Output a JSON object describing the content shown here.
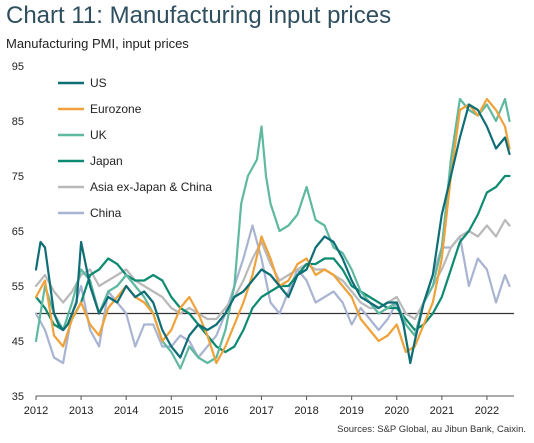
{
  "header": {
    "title": "Chart 11: Manufacturing input prices",
    "subtitle": "Manufacturing PMI, input prices"
  },
  "source": "Sources: S&P Global, au Jibun Bank, Caixin.",
  "chart_data": {
    "type": "line",
    "title": "Chart 11: Manufacturing input prices",
    "ylabel": "Manufacturing PMI, input prices",
    "xlim": [
      2012,
      2022.6
    ],
    "ylim": [
      35,
      95
    ],
    "yticks": [
      35,
      45,
      55,
      65,
      75,
      85,
      95
    ],
    "xticks": [
      2012,
      2013,
      2014,
      2015,
      2016,
      2017,
      2018,
      2019,
      2020,
      2021,
      2022
    ],
    "reference_line": 50,
    "grid": false,
    "legend_position": "top-left",
    "series": [
      {
        "name": "US",
        "color": "#0e6d75",
        "x": [
          2012.0,
          2012.1,
          2012.2,
          2012.3,
          2012.4,
          2012.5,
          2012.6,
          2012.7,
          2012.8,
          2012.9,
          2013.0,
          2013.2,
          2013.4,
          2013.6,
          2013.8,
          2014.0,
          2014.2,
          2014.4,
          2014.6,
          2014.8,
          2015.0,
          2015.2,
          2015.4,
          2015.6,
          2015.8,
          2016.0,
          2016.2,
          2016.4,
          2016.6,
          2016.8,
          2017.0,
          2017.2,
          2017.4,
          2017.6,
          2017.8,
          2018.0,
          2018.2,
          2018.4,
          2018.6,
          2018.8,
          2019.0,
          2019.2,
          2019.4,
          2019.6,
          2019.8,
          2020.0,
          2020.15,
          2020.3,
          2020.4,
          2020.6,
          2020.8,
          2021.0,
          2021.2,
          2021.4,
          2021.6,
          2021.8,
          2022.0,
          2022.2,
          2022.4,
          2022.5
        ],
        "y": [
          58,
          63,
          62,
          56,
          50,
          48,
          47,
          48,
          50,
          52,
          63,
          55,
          50,
          53,
          52,
          55,
          53,
          54,
          52,
          47,
          44,
          42,
          46,
          48,
          47,
          48,
          50,
          53,
          54,
          56,
          58,
          57,
          55,
          53,
          57,
          58,
          62,
          64,
          63,
          60,
          56,
          53,
          52,
          51,
          52,
          52,
          48,
          41,
          45,
          52,
          57,
          68,
          75,
          82,
          88,
          87,
          84,
          80,
          82,
          79
        ]
      },
      {
        "name": "Eurozone",
        "color": "#f0a23a",
        "x": [
          2012.0,
          2012.2,
          2012.4,
          2012.6,
          2012.8,
          2013.0,
          2013.2,
          2013.4,
          2013.6,
          2013.8,
          2014.0,
          2014.2,
          2014.4,
          2014.6,
          2014.8,
          2015.0,
          2015.2,
          2015.4,
          2015.6,
          2015.8,
          2016.0,
          2016.2,
          2016.4,
          2016.6,
          2016.8,
          2017.0,
          2017.2,
          2017.4,
          2017.6,
          2017.8,
          2018.0,
          2018.2,
          2018.4,
          2018.6,
          2018.8,
          2019.0,
          2019.2,
          2019.4,
          2019.6,
          2019.8,
          2020.0,
          2020.2,
          2020.4,
          2020.6,
          2020.8,
          2021.0,
          2021.2,
          2021.4,
          2021.6,
          2021.8,
          2022.0,
          2022.2,
          2022.4,
          2022.5
        ],
        "y": [
          53,
          56,
          46,
          44,
          49,
          52,
          48,
          46,
          51,
          53,
          55,
          53,
          52,
          50,
          45,
          47,
          51,
          53,
          50,
          46,
          41,
          44,
          48,
          52,
          57,
          64,
          60,
          55,
          56,
          59,
          60,
          57,
          58,
          57,
          55,
          53,
          49,
          47,
          45,
          46,
          48,
          43,
          44,
          48,
          52,
          60,
          75,
          87,
          88,
          86,
          89,
          87,
          84,
          80
        ]
      },
      {
        "name": "UK",
        "color": "#5fb8a0",
        "x": [
          2012.0,
          2012.2,
          2012.4,
          2012.6,
          2012.8,
          2013.0,
          2013.2,
          2013.4,
          2013.6,
          2013.8,
          2014.0,
          2014.2,
          2014.4,
          2014.6,
          2014.8,
          2015.0,
          2015.2,
          2015.4,
          2015.6,
          2015.8,
          2016.0,
          2016.2,
          2016.4,
          2016.55,
          2016.7,
          2016.9,
          2017.0,
          2017.1,
          2017.2,
          2017.4,
          2017.6,
          2017.8,
          2018.0,
          2018.2,
          2018.4,
          2018.6,
          2018.8,
          2019.0,
          2019.2,
          2019.4,
          2019.6,
          2019.8,
          2020.0,
          2020.2,
          2020.4,
          2020.6,
          2020.8,
          2021.0,
          2021.2,
          2021.4,
          2021.6,
          2021.8,
          2022.0,
          2022.2,
          2022.4,
          2022.5
        ],
        "y": [
          45,
          55,
          50,
          47,
          52,
          58,
          56,
          50,
          54,
          55,
          57,
          55,
          53,
          50,
          45,
          43,
          40,
          44,
          42,
          41,
          42,
          47,
          55,
          70,
          75,
          78,
          84,
          75,
          70,
          65,
          66,
          68,
          73,
          67,
          66,
          62,
          61,
          58,
          54,
          52,
          50,
          51,
          52,
          48,
          46,
          52,
          55,
          62,
          78,
          89,
          87,
          86,
          88,
          85,
          89,
          85
        ]
      },
      {
        "name": "Japan",
        "color": "#0f8a72",
        "x": [
          2012.0,
          2012.2,
          2012.4,
          2012.6,
          2012.8,
          2013.0,
          2013.2,
          2013.4,
          2013.6,
          2013.8,
          2014.0,
          2014.2,
          2014.4,
          2014.6,
          2014.8,
          2015.0,
          2015.2,
          2015.4,
          2015.6,
          2015.8,
          2016.0,
          2016.2,
          2016.4,
          2016.6,
          2016.8,
          2017.0,
          2017.2,
          2017.4,
          2017.6,
          2017.8,
          2018.0,
          2018.2,
          2018.4,
          2018.6,
          2018.8,
          2019.0,
          2019.2,
          2019.4,
          2019.6,
          2019.8,
          2020.0,
          2020.2,
          2020.4,
          2020.6,
          2020.8,
          2021.0,
          2021.2,
          2021.4,
          2021.6,
          2021.8,
          2022.0,
          2022.2,
          2022.4,
          2022.5
        ],
        "y": [
          53,
          51,
          48,
          47,
          49,
          52,
          57,
          58,
          60,
          59,
          57,
          56,
          56,
          57,
          56,
          53,
          51,
          50,
          48,
          46,
          44,
          43,
          44,
          47,
          51,
          53,
          54,
          55,
          55,
          57,
          59,
          59,
          60,
          60,
          58,
          55,
          54,
          53,
          52,
          51,
          51,
          49,
          47,
          48,
          50,
          53,
          58,
          63,
          65,
          68,
          72,
          73,
          75,
          75
        ]
      },
      {
        "name": "Asia ex-Japan & China",
        "color": "#b9b9b9",
        "x": [
          2012.0,
          2012.2,
          2012.4,
          2012.6,
          2012.8,
          2013.0,
          2013.2,
          2013.4,
          2013.6,
          2013.8,
          2014.0,
          2014.2,
          2014.4,
          2014.6,
          2014.8,
          2015.0,
          2015.2,
          2015.4,
          2015.6,
          2015.8,
          2016.0,
          2016.2,
          2016.4,
          2016.6,
          2016.8,
          2017.0,
          2017.2,
          2017.4,
          2017.6,
          2017.8,
          2018.0,
          2018.2,
          2018.4,
          2018.6,
          2018.8,
          2019.0,
          2019.2,
          2019.4,
          2019.6,
          2019.8,
          2020.0,
          2020.2,
          2020.4,
          2020.6,
          2020.8,
          2021.0,
          2021.2,
          2021.4,
          2021.6,
          2021.8,
          2022.0,
          2022.2,
          2022.4,
          2022.5
        ],
        "y": [
          55,
          57,
          54,
          52,
          54,
          57,
          58,
          55,
          56,
          57,
          58,
          56,
          55,
          54,
          53,
          51,
          50,
          51,
          50,
          49,
          49,
          51,
          53,
          56,
          60,
          63,
          59,
          56,
          57,
          58,
          59,
          58,
          58,
          57,
          56,
          54,
          52,
          51,
          51,
          52,
          53,
          50,
          49,
          52,
          55,
          58,
          62,
          64,
          65,
          64,
          66,
          64,
          67,
          66
        ]
      },
      {
        "name": "China",
        "color": "#a9b4d2",
        "x": [
          2012.0,
          2012.2,
          2012.4,
          2012.6,
          2012.8,
          2013.0,
          2013.2,
          2013.4,
          2013.6,
          2013.8,
          2014.0,
          2014.2,
          2014.4,
          2014.6,
          2014.8,
          2015.0,
          2015.2,
          2015.4,
          2015.6,
          2015.8,
          2016.0,
          2016.2,
          2016.4,
          2016.6,
          2016.8,
          2017.0,
          2017.2,
          2017.4,
          2017.6,
          2017.8,
          2018.0,
          2018.2,
          2018.4,
          2018.6,
          2018.8,
          2019.0,
          2019.2,
          2019.4,
          2019.6,
          2019.8,
          2020.0,
          2020.2,
          2020.4,
          2020.6,
          2020.8,
          2021.0,
          2021.2,
          2021.4,
          2021.6,
          2021.8,
          2022.0,
          2022.2,
          2022.4,
          2022.5
        ],
        "y": [
          50,
          47,
          42,
          41,
          50,
          55,
          47,
          44,
          54,
          52,
          50,
          44,
          48,
          48,
          44,
          44,
          46,
          45,
          42,
          44,
          46,
          50,
          55,
          60,
          66,
          60,
          52,
          50,
          54,
          58,
          56,
          52,
          53,
          54,
          52,
          48,
          51,
          49,
          47,
          49,
          52,
          48,
          46,
          52,
          57,
          62,
          62,
          64,
          55,
          60,
          58,
          52,
          57,
          55
        ]
      }
    ]
  }
}
